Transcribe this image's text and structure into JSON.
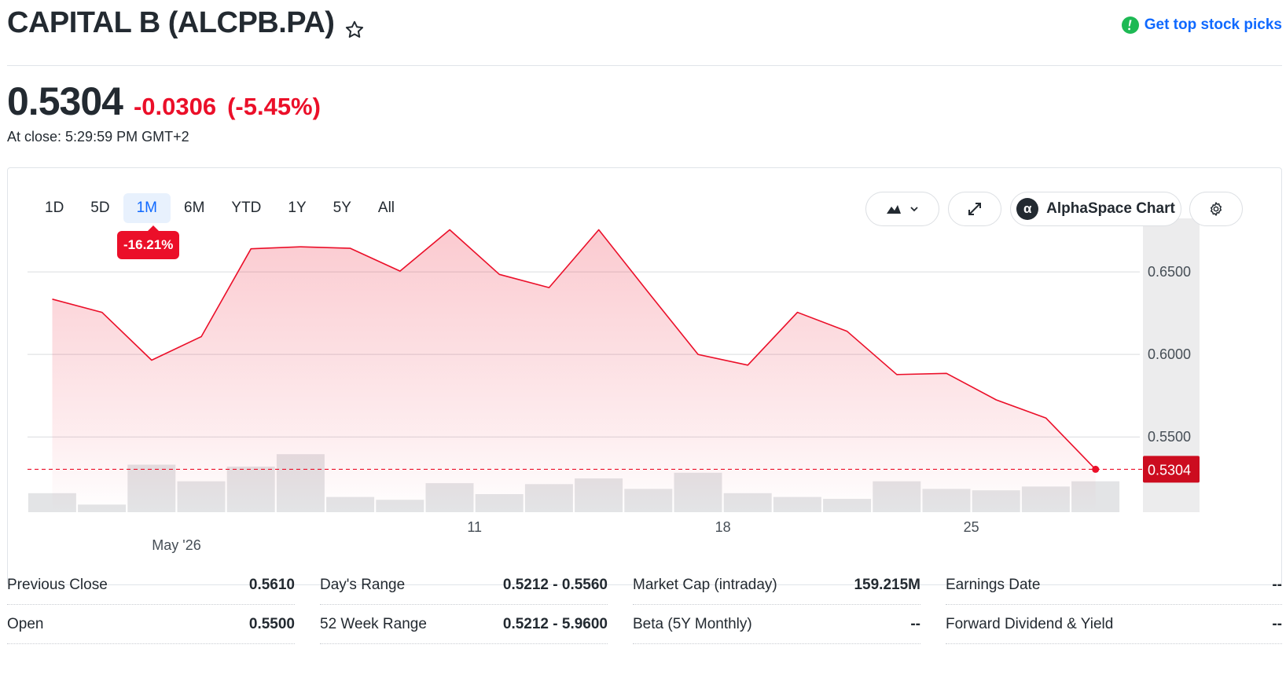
{
  "header": {
    "title": "CAPITAL B (ALCPB.PA)",
    "picks_label": "Get top stock picks"
  },
  "quote": {
    "price": "0.5304",
    "change": "-0.0306",
    "change_pct": "(-5.45%)",
    "close_time": "At close: 5:29:59 PM GMT+2"
  },
  "chart_toolbar": {
    "ranges": [
      "1D",
      "5D",
      "1M",
      "6M",
      "YTD",
      "1Y",
      "5Y",
      "All"
    ],
    "active_range": "1M",
    "range_change": "-16.21%",
    "alpha_label": "AlphaSpace Chart",
    "alpha_logo": "α"
  },
  "colors": {
    "down": "#eb0f29",
    "link": "#0f69ff",
    "volume": "#e3e4e6"
  },
  "chart_data": {
    "type": "area",
    "x_labels": [
      {
        "index": 8.5,
        "text": "11"
      },
      {
        "index": 13.5,
        "text": "18"
      },
      {
        "index": 18.5,
        "text": "25"
      }
    ],
    "month_label": "May '26",
    "y_ticks": [
      "0.6500",
      "0.6000",
      "0.5500"
    ],
    "ylim": [
      0.503,
      0.6905
    ],
    "prices": [
      0.6335,
      0.6255,
      0.5965,
      0.6108,
      0.664,
      0.6652,
      0.6643,
      0.6505,
      0.6755,
      0.6485,
      0.6405,
      0.6755,
      0.6375,
      0.6,
      0.5935,
      0.6255,
      0.614,
      0.5878,
      0.5885,
      0.5725,
      0.5615,
      0.5304
    ],
    "volume_relative": [
      0.4,
      0.16,
      1.0,
      0.65,
      0.96,
      1.22,
      0.32,
      0.26,
      0.61,
      0.38,
      0.59,
      0.71,
      0.49,
      0.83,
      0.4,
      0.32,
      0.28,
      0.65,
      0.49,
      0.46,
      0.54,
      0.65
    ],
    "last_price": 0.5304,
    "last_label": "0.5304"
  },
  "stats": {
    "col1": [
      {
        "label": "Previous Close",
        "value": "0.5610"
      },
      {
        "label": "Open",
        "value": "0.5500"
      }
    ],
    "col2": [
      {
        "label": "Day's Range",
        "value": "0.5212 - 0.5560"
      },
      {
        "label": "52 Week Range",
        "value": "0.5212 - 5.9600"
      }
    ],
    "col3": [
      {
        "label": "Market Cap (intraday)",
        "value": "159.215M"
      },
      {
        "label": "Beta (5Y Monthly)",
        "value": "--"
      }
    ],
    "col4": [
      {
        "label": "Earnings Date",
        "value": "--"
      },
      {
        "label": "Forward Dividend & Yield",
        "value": "--"
      }
    ]
  }
}
